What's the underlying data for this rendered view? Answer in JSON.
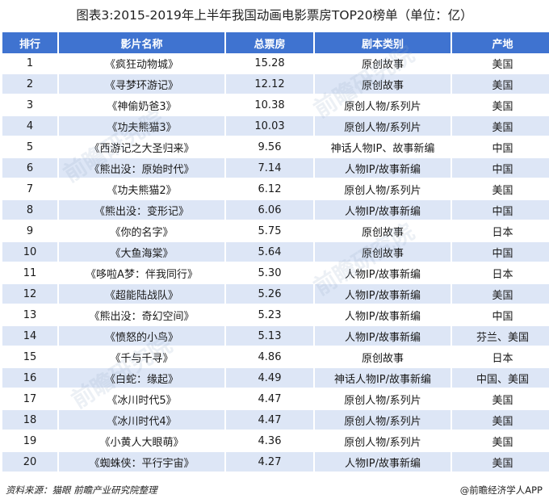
{
  "title": "图表3:2015-2019年上半年我国动画电影票房TOP20榜单（单位：亿）",
  "headers": [
    "排行",
    "影片名称",
    "总票房",
    "剧本类别",
    "产地"
  ],
  "rows": [
    [
      "1",
      "《疯狂动物城》",
      "15.28",
      "原创故事",
      "美国"
    ],
    [
      "2",
      "《寻梦环游记》",
      "12.12",
      "原创故事",
      "美国"
    ],
    [
      "3",
      "《神偷奶爸3》",
      "10.38",
      "原创人物/系列片",
      "美国"
    ],
    [
      "4",
      "《功夫熊猫3》",
      "10.03",
      "原创人物/系列片",
      "美国"
    ],
    [
      "5",
      "《西游记之大圣归来》",
      "9.56",
      "神话人物IP、故事新编",
      "中国"
    ],
    [
      "6",
      "《熊出没：原始时代》",
      "7.14",
      "人物IP/故事新编",
      "中国"
    ],
    [
      "7",
      "《功夫熊猫2》",
      "6.12",
      "原创人物/系列片",
      "美国"
    ],
    [
      "8",
      "《熊出没：变形记》",
      "6.06",
      "人物IP/故事新编",
      "中国"
    ],
    [
      "9",
      "《你的名字》",
      "5.75",
      "原创故事",
      "日本"
    ],
    [
      "10",
      "《大鱼海棠》",
      "5.64",
      "原创故事",
      "中国"
    ],
    [
      "11",
      "《哆啦A梦：伴我同行》",
      "5.30",
      "人物IP/故事新编",
      "日本"
    ],
    [
      "12",
      "《超能陆战队》",
      "5.26",
      "人物IP/故事新编",
      "美国"
    ],
    [
      "13",
      "《熊出没：奇幻空间》",
      "5.23",
      "人物IP/故事新编",
      "中国"
    ],
    [
      "14",
      "《愤怒的小鸟》",
      "5.13",
      "人物IP/故事新编",
      "芬兰、美国"
    ],
    [
      "15",
      "《千与千寻》",
      "4.86",
      "原创故事",
      "日本"
    ],
    [
      "16",
      "《白蛇：缘起》",
      "4.49",
      "神话人物IP/故事新编",
      "中国、美国"
    ],
    [
      "17",
      "《冰川时代5》",
      "4.47",
      "原创人物/系列片",
      "美国"
    ],
    [
      "18",
      "《冰川时代4》",
      "4.47",
      "原创人物/系列片",
      "美国"
    ],
    [
      "19",
      "《小黄人大眼萌》",
      "4.36",
      "原创人物/系列片",
      "美国"
    ],
    [
      "20",
      "《蜘蛛侠：平行宇宙》",
      "4.27",
      "人物IP/故事新编",
      "美国"
    ]
  ],
  "footer": {
    "source": "资料来源：猫眼 前瞻产业研究院整理",
    "brand": "@前瞻经济学人APP"
  },
  "watermark_text": "前瞻研究院",
  "colors": {
    "header_bg": "#3f73d0",
    "stripe_bg": "#dde6f6"
  }
}
